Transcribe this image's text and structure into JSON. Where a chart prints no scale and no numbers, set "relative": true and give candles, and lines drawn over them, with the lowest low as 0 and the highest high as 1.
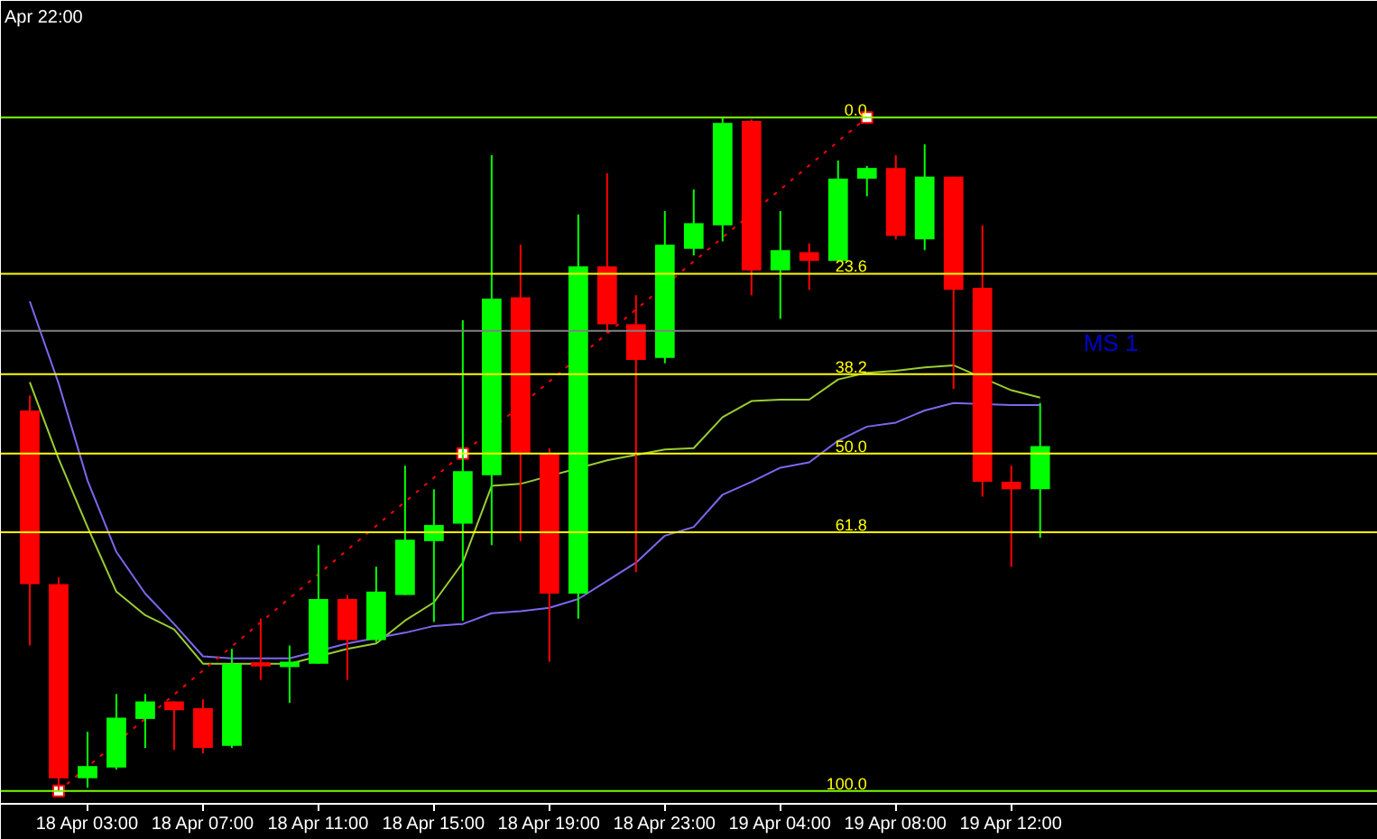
{
  "chart_data": {
    "type": "candlestick",
    "relative": true,
    "grid": false,
    "annotations": [
      "Apr 22:00",
      {
        "text": "0.0",
        "y": 1.0
      },
      {
        "text": "23.6",
        "y": 0.768
      },
      {
        "text": "38.2",
        "y": 0.619
      },
      {
        "text": "50.0",
        "y": 0.501
      },
      {
        "text": "61.8",
        "y": 0.384
      },
      {
        "text": "100.0",
        "y": 0.0
      }
    ],
    "categories": [
      null,
      null,
      "18 Apr 03:00",
      null,
      null,
      null,
      "18 Apr 07:00",
      null,
      null,
      null,
      "18 Apr 11:00",
      null,
      null,
      null,
      "18 Apr 15:00",
      null,
      null,
      null,
      "18 Apr 19:00",
      null,
      null,
      null,
      "18 Apr 23:00",
      null,
      null,
      null,
      "19 Apr 04:00",
      null,
      null,
      null,
      "19 Apr 08:00",
      null,
      null,
      null,
      "19 Apr 12:00",
      null
    ],
    "ohlc": [
      [
        0.565,
        0.587,
        0.216,
        0.307
      ],
      [
        0.307,
        0.317,
        0,
        0.019
      ],
      [
        0.019,
        0.088,
        0.005,
        0.037
      ],
      [
        0.035,
        0.144,
        0.032,
        0.109
      ],
      [
        0.107,
        0.144,
        0.064,
        0.133
      ],
      [
        0.133,
        0.133,
        0.061,
        0.12
      ],
      [
        0.123,
        0.136,
        0.056,
        0.064
      ],
      [
        0.067,
        0.211,
        0.064,
        0.189
      ],
      [
        0.189,
        0.256,
        0.165,
        0.187
      ],
      [
        0.184,
        0.216,
        0.131,
        0.192
      ],
      [
        0.189,
        0.365,
        0.189,
        0.285
      ],
      [
        0.285,
        0.291,
        0.165,
        0.224
      ],
      [
        0.224,
        0.333,
        0.221,
        0.296
      ],
      [
        0.291,
        0.483,
        0.291,
        0.373
      ],
      [
        0.371,
        0.448,
        0.251,
        0.395
      ],
      [
        0.397,
        0.699,
        0.253,
        0.475
      ],
      [
        0.469,
        0.944,
        0.365,
        0.731
      ],
      [
        0.733,
        0.811,
        0.371,
        0.501
      ],
      [
        0.501,
        0.509,
        0.192,
        0.293
      ],
      [
        0.293,
        0.856,
        0.256,
        0.779
      ],
      [
        0.779,
        0.917,
        0.68,
        0.693
      ],
      [
        0.693,
        0.736,
        0.325,
        0.64
      ],
      [
        0.643,
        0.861,
        0.635,
        0.811
      ],
      [
        0.805,
        0.893,
        0.795,
        0.843
      ],
      [
        0.84,
        1,
        0.816,
        0.992
      ],
      [
        0.995,
        0.997,
        0.736,
        0.773
      ],
      [
        0.773,
        0.861,
        0.701,
        0.803
      ],
      [
        0.8,
        0.813,
        0.744,
        0.787
      ],
      [
        0.787,
        0.936,
        0.787,
        0.909
      ],
      [
        0.909,
        0.928,
        0.883,
        0.925
      ],
      [
        0.925,
        0.944,
        0.819,
        0.824
      ],
      [
        0.819,
        0.96,
        0.803,
        0.912
      ],
      [
        0.912,
        0.912,
        0.597,
        0.744
      ],
      [
        0.747,
        0.84,
        0.437,
        0.459
      ],
      [
        0.459,
        0.483,
        0.333,
        0.448
      ],
      [
        0.448,
        0.576,
        0.376,
        0.512
      ]
    ],
    "colors": [
      "#ff0000",
      "#ff0000",
      "#00ff00",
      "#00ff00",
      "#00ff00",
      "#ff0000",
      "#ff0000",
      "#00ff00",
      "#ff0000",
      "#00ff00",
      "#00ff00",
      "#ff0000",
      "#00ff00",
      "#00ff00",
      "#00ff00",
      "#00ff00",
      "#00ff00",
      "#ff0000",
      "#ff0000",
      "#00ff00",
      "#ff0000",
      "#ff0000",
      "#00ff00",
      "#00ff00",
      "#00ff00",
      "#ff0000",
      "#00ff00",
      "#ff0000",
      "#00ff00",
      "#00ff00",
      "#ff0000",
      "#00ff00",
      "#ff0000",
      "#ff0000",
      "#ff0000",
      "#00ff00"
    ],
    "series": [
      {
        "type": "line",
        "color": "#9acd32",
        "line_style": "solid",
        "values": [
          0.607,
          0.493,
          0.392,
          0.296,
          0.261,
          0.24,
          0.189,
          0.189,
          0.189,
          0.189,
          null,
          0.211,
          0.219,
          0.253,
          0.28,
          0.339,
          0.453,
          0.456,
          null,
          null,
          0.491,
          0.499,
          0.507,
          0.509,
          0.555,
          0.579,
          0.581,
          0.581,
          0.611,
          0.621,
          0.624,
          0.629,
          0.632,
          null,
          0.595,
          0.584
        ]
      },
      {
        "type": "line",
        "color": "#7b68ee",
        "line_style": "solid",
        "values": [
          0.727,
          0.605,
          0.461,
          0.355,
          0.293,
          0.248,
          0.2,
          0.197,
          0.197,
          0.197,
          null,
          0.219,
          null,
          0.235,
          0.245,
          0.248,
          0.264,
          0.267,
          0.272,
          0.285,
          0.312,
          0.339,
          0.379,
          0.392,
          0.44,
          0.459,
          0.48,
          0.488,
          0.52,
          0.541,
          0.547,
          0.565,
          0.576,
          null,
          0.573,
          0.573
        ]
      },
      {
        "type": "line",
        "color": "#ff0000",
        "line_style": "dotted",
        "marker": "square",
        "values": [
          null,
          0,
          null,
          null,
          null,
          null,
          null,
          null,
          null,
          null,
          null,
          null,
          null,
          null,
          null,
          0.501,
          null,
          null,
          null,
          null,
          null,
          null,
          null,
          null,
          null,
          null,
          null,
          null,
          null,
          1.0,
          null,
          null,
          null,
          null,
          null,
          null
        ]
      }
    ],
    "ref_lines": [
      {
        "axis": "y",
        "value": 1.0,
        "color": "#7cfc00"
      },
      {
        "axis": "y",
        "value": 0.768,
        "color": "#ffff00"
      },
      {
        "axis": "y",
        "value": 0.619,
        "color": "#ffff00"
      },
      {
        "axis": "y",
        "value": 0.501,
        "color": "#ffff00"
      },
      {
        "axis": "y",
        "value": 0.384,
        "color": "#ffff00"
      },
      {
        "axis": "y",
        "value": 0.0,
        "color": "#7cfc00"
      },
      {
        "axis": "y",
        "value": 0.683,
        "label": "MS 1",
        "color": "#808080"
      }
    ]
  }
}
